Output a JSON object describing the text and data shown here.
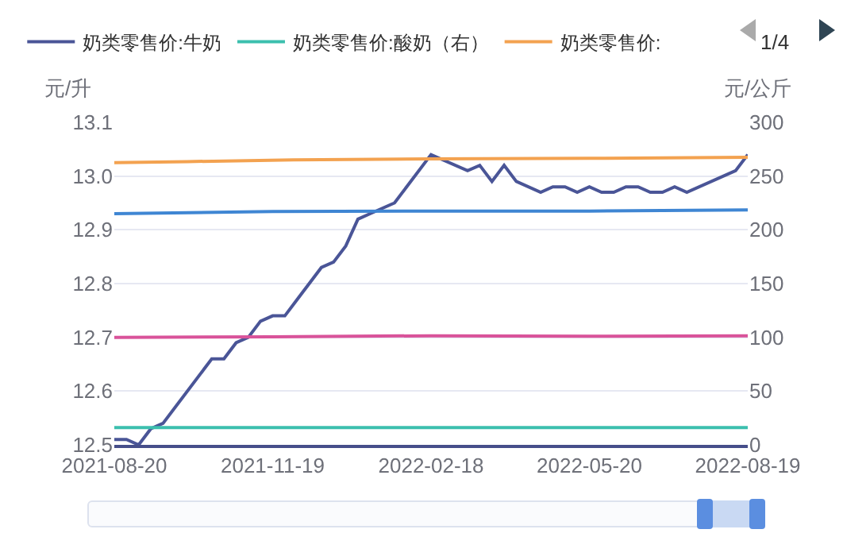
{
  "chart_data": {
    "type": "line",
    "ylabel": "元/升",
    "y2label": "元/公斤",
    "annotations": [
      "1/4"
    ],
    "xlim": [
      "2021-08-20",
      "2022-08-19"
    ],
    "xticks": [
      "2021-08-20",
      "2021-11-19",
      "2022-02-18",
      "2022-05-20",
      "2022-08-19"
    ],
    "ylim": [
      12.5,
      13.1
    ],
    "yticks": [
      12.5,
      12.6,
      12.7,
      12.8,
      12.9,
      {
        "value": 13,
        "label": "13.0"
      },
      13.1
    ],
    "y2lim": [
      0,
      300
    ],
    "y2ticks": [
      0,
      50,
      100,
      150,
      200,
      250,
      300
    ],
    "grid": "y",
    "legend": "top",
    "marker": "none",
    "line_style": "solid",
    "series": [
      {
        "name": "奶类零售价:牛奶",
        "color": "#4a5597",
        "x": [
          "2021-08-20",
          "2021-08-27",
          "2021-09-03",
          "2021-09-10",
          "2021-09-17",
          "2021-10-15",
          "2021-10-22",
          "2021-10-29",
          "2021-11-05",
          "2021-11-12",
          "2021-11-19",
          "2021-11-26",
          "2021-12-03",
          "2021-12-17",
          "2021-12-24",
          "2021-12-31",
          "2022-01-07",
          "2022-01-14",
          "2022-01-28",
          "2022-02-18",
          "2022-03-11",
          "2022-03-18",
          "2022-03-25",
          "2022-04-01",
          "2022-04-08",
          "2022-04-22",
          "2022-04-29",
          "2022-05-06",
          "2022-05-13",
          "2022-05-20",
          "2022-05-27",
          "2022-06-03",
          "2022-06-10",
          "2022-06-17",
          "2022-06-24",
          "2022-07-01",
          "2022-07-08",
          "2022-07-15",
          "2022-08-12",
          "2022-08-19"
        ],
        "values": [
          12.51,
          12.51,
          12.5,
          12.53,
          12.54,
          12.66,
          12.66,
          12.69,
          12.7,
          12.73,
          12.74,
          12.74,
          12.77,
          12.83,
          12.84,
          12.87,
          12.92,
          12.93,
          12.95,
          13.04,
          13.01,
          13.02,
          12.99,
          13.02,
          12.99,
          12.97,
          12.98,
          12.98,
          12.97,
          12.98,
          12.97,
          12.97,
          12.98,
          12.98,
          12.97,
          12.97,
          12.98,
          12.97,
          13.01,
          13.04
        ]
      },
      {
        "name": "奶类零售价:酸奶（右）",
        "color": "#3cbfae",
        "axis": "y2",
        "x": [
          "2021-08-20",
          "2022-08-19"
        ],
        "values": [
          16,
          16
        ]
      },
      {
        "name": "奶类零售价:",
        "color": "#f3a250",
        "x": [
          "2021-08-20",
          "2021-10-01",
          "2021-12-01",
          "2022-02-18",
          "2022-05-20",
          "2022-08-19"
        ],
        "values": [
          13.025,
          13.027,
          13.03,
          13.032,
          13.033,
          13.035
        ]
      },
      {
        "color": "#3f86d3",
        "x": [
          "2021-08-20",
          "2021-11-19",
          "2022-02-18",
          "2022-05-20",
          "2022-08-19"
        ],
        "values": [
          12.93,
          12.934,
          12.935,
          12.935,
          12.937
        ]
      },
      {
        "color": "#d9539a",
        "x": [
          "2021-08-20",
          "2021-11-19",
          "2022-02-18",
          "2022-05-20",
          "2022-08-19"
        ],
        "values": [
          12.7,
          12.701,
          12.703,
          12.702,
          12.703
        ]
      }
    ]
  }
}
